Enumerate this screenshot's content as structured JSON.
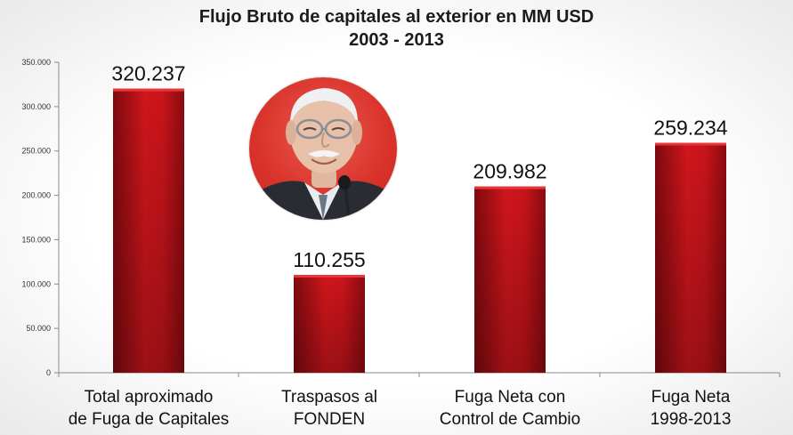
{
  "chart_data": {
    "type": "bar",
    "title": "Flujo Bruto de capitales al exterior en MM USD",
    "subtitle": "2003 - 2013",
    "categories": [
      [
        "Total aproximado",
        "de Fuga de Capitales"
      ],
      [
        "Traspasos al",
        "FONDEN"
      ],
      [
        "Fuga Neta con",
        "Control de Cambio"
      ],
      [
        "Fuga Neta",
        "1998-2013"
      ]
    ],
    "values": [
      320237,
      110255,
      209982,
      259234
    ],
    "data_labels": [
      "320.237",
      "110.255",
      "209.982",
      "259.234"
    ],
    "ylim": [
      0,
      350000
    ],
    "yticks": [
      0,
      50000,
      100000,
      150000,
      200000,
      250000,
      300000,
      350000
    ],
    "ytick_labels": [
      "0",
      "50.000",
      "100.000",
      "150.000",
      "200.000",
      "250.000",
      "300.000",
      "350.000"
    ],
    "grid": false,
    "legend": "none",
    "bar_color": "#c8141a"
  },
  "photo": {
    "icon": "portrait-photo-icon"
  }
}
